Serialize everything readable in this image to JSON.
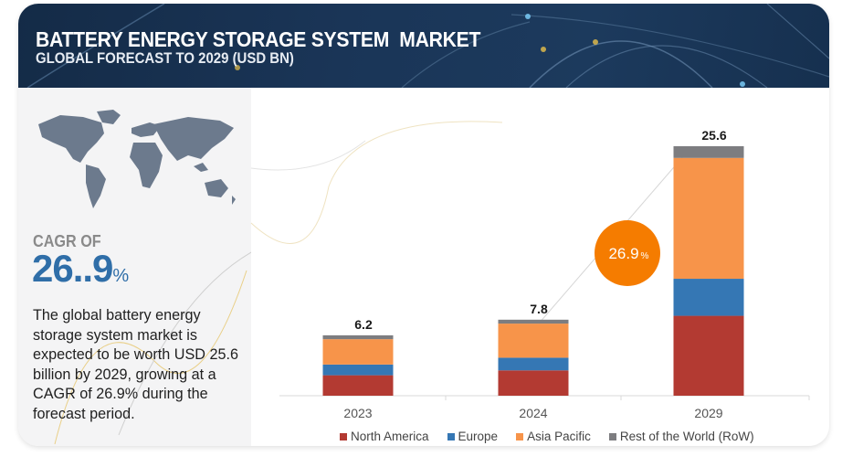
{
  "header": {
    "title": "BATTERY ENERGY STORAGE SYSTEM  MARKET",
    "subtitle": "GLOBAL FORECAST TO 2029 (USD BN)"
  },
  "summary": {
    "cagr_label": "CAGR OF",
    "cagr_value": "26..9",
    "cagr_unit": "%",
    "description": "The global battery energy storage system market is expected to be worth USD 25.6 billion by 2029, growing at a CAGR of 26.9% during the forecast period."
  },
  "badge": {
    "value": "26.9",
    "unit": "%",
    "color": "#f57c00"
  },
  "chart_data": {
    "type": "bar",
    "stacked": true,
    "title": "Battery Energy Storage System Market, Global Forecast to 2029 (USD BN)",
    "xlabel": "",
    "ylabel": "",
    "categories": [
      "2023",
      "2024",
      "2029"
    ],
    "totals": [
      "6.2",
      "7.8",
      "25.6"
    ],
    "ylim": [
      0,
      25.6
    ],
    "grid": false,
    "legend_position": "bottom",
    "series": [
      {
        "name": "North America",
        "color": "#b33a32",
        "values": [
          2.1,
          2.6,
          8.2
        ]
      },
      {
        "name": "Europe",
        "color": "#3577b4",
        "values": [
          1.1,
          1.3,
          3.8
        ]
      },
      {
        "name": "Asia Pacific",
        "color": "#f7944a",
        "values": [
          2.6,
          3.5,
          12.4
        ]
      },
      {
        "name": "Rest of the World (RoW)",
        "color": "#7d7d80",
        "values": [
          0.4,
          0.4,
          1.2
        ]
      }
    ],
    "annotation": "26.9%"
  }
}
